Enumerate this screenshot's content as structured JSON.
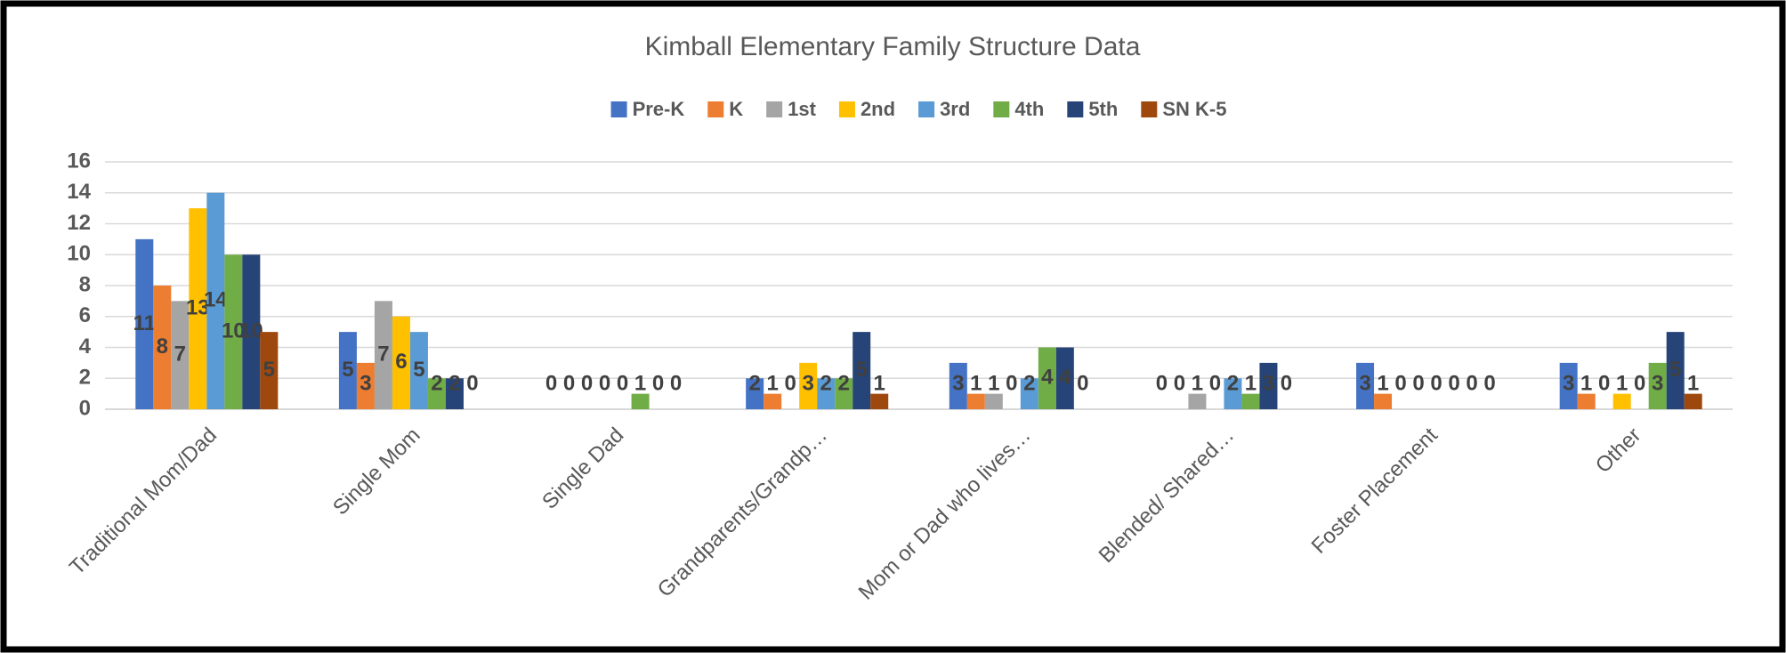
{
  "chart_data": {
    "type": "bar",
    "title": "Kimball Elementary Family Structure Data",
    "categories": [
      "Traditional Mom/Dad",
      "Single Mom",
      "Single Dad",
      "Grandparents/Grandp…",
      "Mom or Dad who lives…",
      "Blended/ Shared…",
      "Foster Placement",
      "Other"
    ],
    "series": [
      {
        "name": "Pre-K",
        "color": "#4472c4",
        "values": [
          11,
          5,
          0,
          2,
          3,
          0,
          3,
          3
        ]
      },
      {
        "name": "K",
        "color": "#ed7d31",
        "values": [
          8,
          3,
          0,
          1,
          1,
          0,
          1,
          1
        ]
      },
      {
        "name": "1st",
        "color": "#a5a5a5",
        "values": [
          7,
          7,
          0,
          0,
          1,
          1,
          0,
          0
        ]
      },
      {
        "name": "2nd",
        "color": "#ffc000",
        "values": [
          13,
          6,
          0,
          3,
          0,
          0,
          0,
          1
        ]
      },
      {
        "name": "3rd",
        "color": "#5b9bd5",
        "values": [
          14,
          5,
          0,
          2,
          2,
          2,
          0,
          0
        ]
      },
      {
        "name": "4th",
        "color": "#70ad47",
        "values": [
          10,
          2,
          1,
          2,
          4,
          1,
          0,
          3
        ]
      },
      {
        "name": "5th",
        "color": "#264478",
        "values": [
          10,
          2,
          0,
          5,
          4,
          3,
          0,
          5
        ]
      },
      {
        "name": "SN K-5",
        "color": "#9e480e",
        "values": [
          5,
          0,
          0,
          1,
          0,
          0,
          0,
          1
        ]
      }
    ],
    "ylim": [
      0,
      16
    ],
    "yticks": [
      0,
      2,
      4,
      6,
      8,
      10,
      12,
      14,
      16
    ],
    "grid": true,
    "legend": "top"
  }
}
